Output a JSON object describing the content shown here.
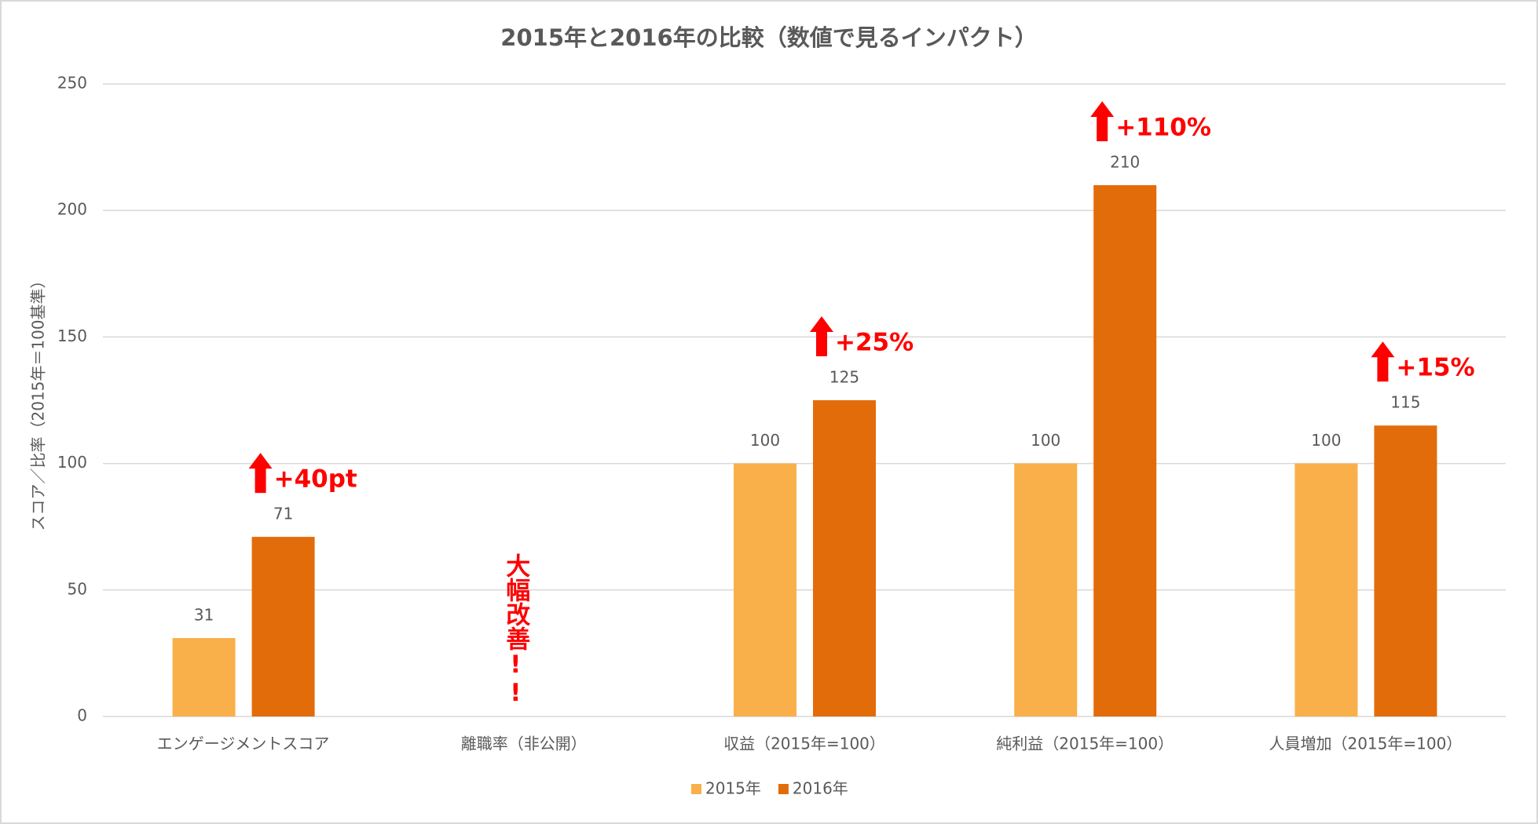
{
  "chart_data": {
    "type": "bar",
    "title": "2015年と2016年の比較（数値で見るインパクト）",
    "y_label": "スコア／比率（2015年＝100基準）",
    "categories": [
      "エンゲージメントスコア",
      "離職率（非公開）",
      "収益（2015年=100）",
      "純利益（2015年=100）",
      "人員増加（2015年=100）"
    ],
    "series": [
      {
        "name": "2015年",
        "color": "#f9b04a",
        "values": [
          31,
          null,
          100,
          100,
          100
        ]
      },
      {
        "name": "2016年",
        "color": "#e36c0a",
        "values": [
          71,
          null,
          125,
          210,
          115
        ]
      }
    ],
    "annotations": [
      "+40pt",
      "大幅改善!!",
      "+25%",
      "+110%",
      "+15%"
    ],
    "ylim": [
      0,
      250
    ],
    "yticks": [
      0,
      50,
      100,
      150,
      200,
      250
    ],
    "grid": true,
    "legend": "bottom"
  }
}
